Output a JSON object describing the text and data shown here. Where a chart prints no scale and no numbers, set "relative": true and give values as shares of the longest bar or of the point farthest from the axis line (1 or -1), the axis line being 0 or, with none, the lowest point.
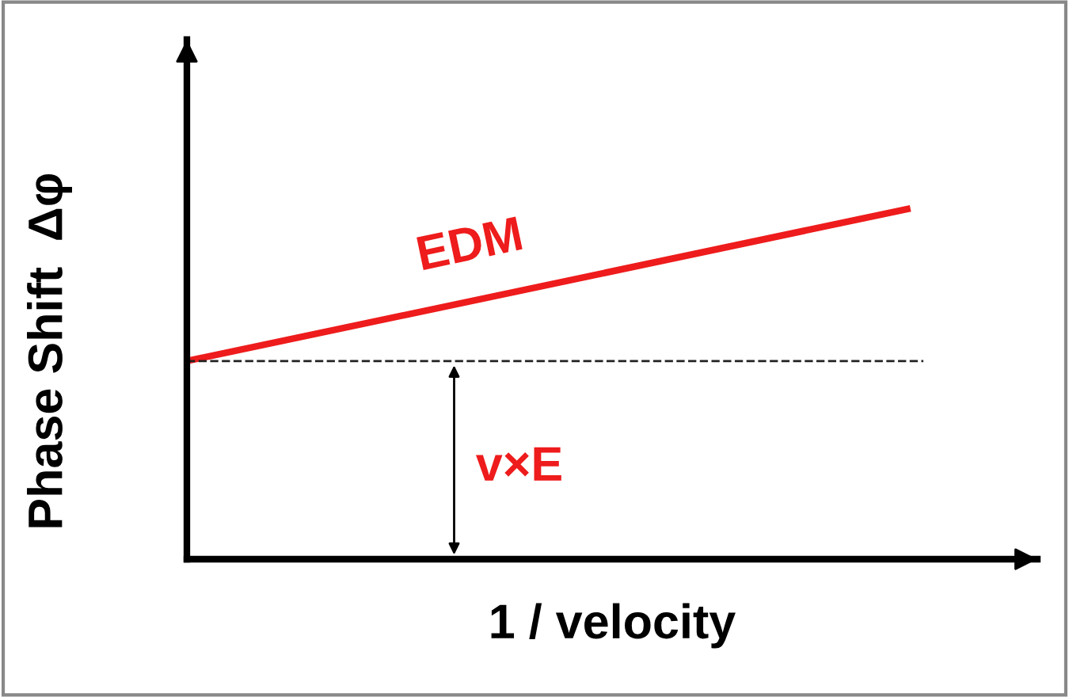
{
  "chart_data": {
    "type": "line",
    "relative": true,
    "xlabel": "1 / velocity",
    "ylabel": "Phase Shift  Δφ",
    "categories": [
      null,
      null
    ],
    "series": [
      {
        "name": "EDM",
        "color": "#ee1c1c",
        "values": [
          0.566,
          1
        ]
      }
    ],
    "ref_lines": [
      {
        "axis": "y",
        "value": 0.566,
        "label": "v×E",
        "color": "#222222",
        "line_style": "dashed"
      }
    ],
    "tick_labels": false,
    "legend": false,
    "marker": "none",
    "line_style": "solid"
  }
}
